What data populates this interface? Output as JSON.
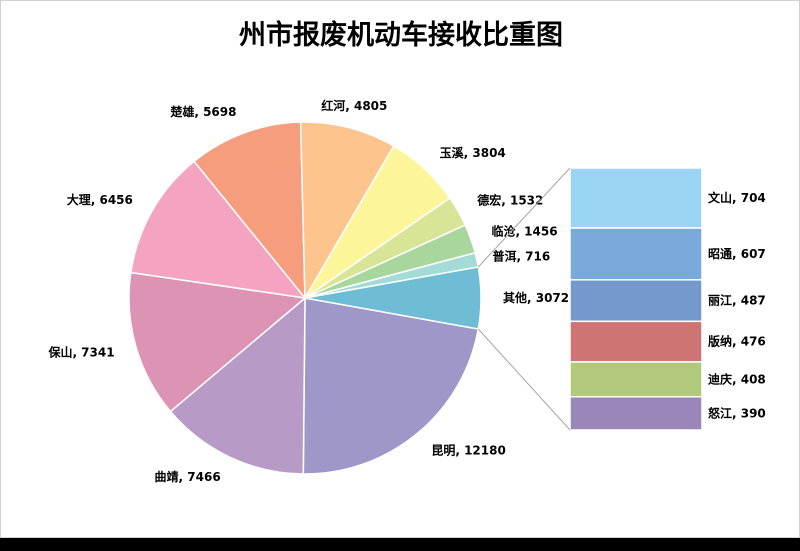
{
  "chart_data": {
    "type": "pie",
    "subtype": "bar-of-pie",
    "title": "州市报废机动车接收比重图",
    "slices": [
      {
        "label": "昆明",
        "value": 12180,
        "color": "#a097c9"
      },
      {
        "label": "曲靖",
        "value": 7466,
        "color": "#b89ac7"
      },
      {
        "label": "保山",
        "value": 7341,
        "color": "#dd93b3"
      },
      {
        "label": "大理",
        "value": 6456,
        "color": "#f4a3c0"
      },
      {
        "label": "楚雄",
        "value": 5698,
        "color": "#f59d7c"
      },
      {
        "label": "红河",
        "value": 4805,
        "color": "#fdc48d"
      },
      {
        "label": "玉溪",
        "value": 3804,
        "color": "#fdf59a"
      },
      {
        "label": "德宏",
        "value": 1532,
        "color": "#d8e597"
      },
      {
        "label": "临沧",
        "value": 1456,
        "color": "#a8d69c"
      },
      {
        "label": "普洱",
        "value": 716,
        "color": "#a3dcd6"
      },
      {
        "label": "其他",
        "value": 3072,
        "color": "#6fbdd4"
      }
    ],
    "other_breakdown": [
      {
        "label": "文山",
        "value": 704,
        "color": "#9bd5f4"
      },
      {
        "label": "昭通",
        "value": 607,
        "color": "#7aa9dc"
      },
      {
        "label": "丽江",
        "value": 487,
        "color": "#739acb"
      },
      {
        "label": "版纳",
        "value": 476,
        "color": "#cf7472"
      },
      {
        "label": "迪庆",
        "value": 408,
        "color": "#b0c97a"
      },
      {
        "label": "怒江",
        "value": 390,
        "color": "#9a86b8"
      }
    ],
    "label_format": "{label}, {value}",
    "legend": "none"
  }
}
